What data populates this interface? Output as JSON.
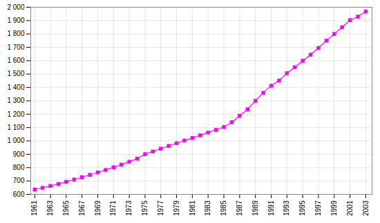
{
  "chart_data": {
    "type": "line",
    "x": [
      1961,
      1962,
      1963,
      1964,
      1965,
      1966,
      1967,
      1968,
      1969,
      1970,
      1971,
      1972,
      1973,
      1974,
      1975,
      1976,
      1977,
      1978,
      1979,
      1980,
      1981,
      1982,
      1983,
      1984,
      1985,
      1986,
      1987,
      1988,
      1989,
      1990,
      1991,
      1992,
      1993,
      1994,
      1995,
      1996,
      1997,
      1998,
      1999,
      2000,
      2001,
      2002,
      2003
    ],
    "values": [
      636,
      649,
      663,
      678,
      694,
      711,
      728,
      746,
      764,
      783,
      803,
      823,
      845,
      867,
      901,
      921,
      942,
      963,
      983,
      1003,
      1022,
      1042,
      1063,
      1083,
      1104,
      1140,
      1188,
      1237,
      1300,
      1360,
      1413,
      1452,
      1507,
      1551,
      1600,
      1645,
      1695,
      1750,
      1800,
      1850,
      1903,
      1930,
      1968
    ],
    "color": "#ff00ff",
    "marker": "square",
    "xlim": [
      1960.5,
      2003.8
    ],
    "xticks": [
      1961,
      1963,
      1965,
      1967,
      1969,
      1971,
      1973,
      1975,
      1977,
      1979,
      1981,
      1983,
      1985,
      1987,
      1989,
      1991,
      1993,
      1995,
      1997,
      1999,
      2001,
      2003
    ],
    "ylim": [
      600,
      2000
    ],
    "yticks": [
      600,
      700,
      800,
      900,
      {
        "value": 1000,
        "label": "1 000"
      },
      {
        "value": 1100,
        "label": "1 100"
      },
      {
        "value": 1200,
        "label": "1 200"
      },
      {
        "value": 1300,
        "label": "1 300"
      },
      {
        "value": 1400,
        "label": "1 400"
      },
      {
        "value": 1500,
        "label": "1 500"
      },
      {
        "value": 1600,
        "label": "1 600"
      },
      {
        "value": 1700,
        "label": "1 700"
      },
      {
        "value": 1800,
        "label": "1 800"
      },
      {
        "value": 1900,
        "label": "1 900"
      },
      {
        "value": 2000,
        "label": "2 000"
      }
    ],
    "grid": true
  }
}
